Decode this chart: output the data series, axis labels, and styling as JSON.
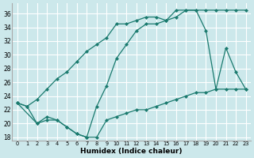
{
  "xlabel": "Humidex (Indice chaleur)",
  "background_color": "#cce8eb",
  "grid_color": "#ffffff",
  "line_color": "#1a7a6e",
  "xlim": [
    -0.5,
    23.5
  ],
  "ylim": [
    17.5,
    37.5
  ],
  "yticks": [
    18,
    20,
    22,
    24,
    26,
    28,
    30,
    32,
    34,
    36
  ],
  "xticks": [
    0,
    1,
    2,
    3,
    4,
    5,
    6,
    7,
    8,
    9,
    10,
    11,
    12,
    13,
    14,
    15,
    16,
    17,
    18,
    19,
    20,
    21,
    22,
    23
  ],
  "line1_x": [
    0,
    1,
    2,
    3,
    4,
    5,
    6,
    7,
    8,
    9,
    10,
    11,
    12,
    13,
    14,
    15,
    16,
    17,
    18,
    19,
    20,
    21,
    22,
    23
  ],
  "line1_y": [
    23.0,
    22.5,
    20.0,
    20.5,
    20.5,
    19.5,
    18.5,
    18.0,
    18.0,
    20.5,
    21.0,
    21.5,
    22.0,
    22.0,
    22.5,
    23.0,
    23.5,
    24.0,
    24.5,
    24.5,
    25.0,
    25.0,
    25.0,
    25.0
  ],
  "line2_x": [
    0,
    2,
    3,
    4,
    5,
    6,
    7,
    8,
    9,
    10,
    11,
    12,
    13,
    14,
    15,
    16,
    17,
    18,
    19,
    20,
    21,
    22,
    23
  ],
  "line2_y": [
    23.0,
    20.0,
    21.0,
    20.5,
    19.5,
    18.5,
    18.0,
    22.5,
    25.5,
    29.5,
    31.5,
    33.5,
    34.5,
    34.5,
    35.0,
    35.5,
    36.5,
    36.5,
    33.5,
    25.0,
    31.0,
    27.5,
    25.0
  ],
  "line3_x": [
    0,
    1,
    2,
    3,
    4,
    5,
    6,
    7,
    8,
    9,
    10,
    11,
    12,
    13,
    14,
    15,
    16,
    17,
    18,
    19,
    20,
    21,
    22,
    23
  ],
  "line3_y": [
    23.0,
    22.5,
    23.5,
    25.0,
    26.5,
    27.5,
    29.0,
    30.5,
    31.5,
    32.5,
    34.5,
    34.5,
    35.0,
    35.5,
    35.5,
    35.0,
    36.5,
    36.5,
    36.5,
    36.5,
    36.5,
    36.5,
    36.5,
    36.5
  ]
}
